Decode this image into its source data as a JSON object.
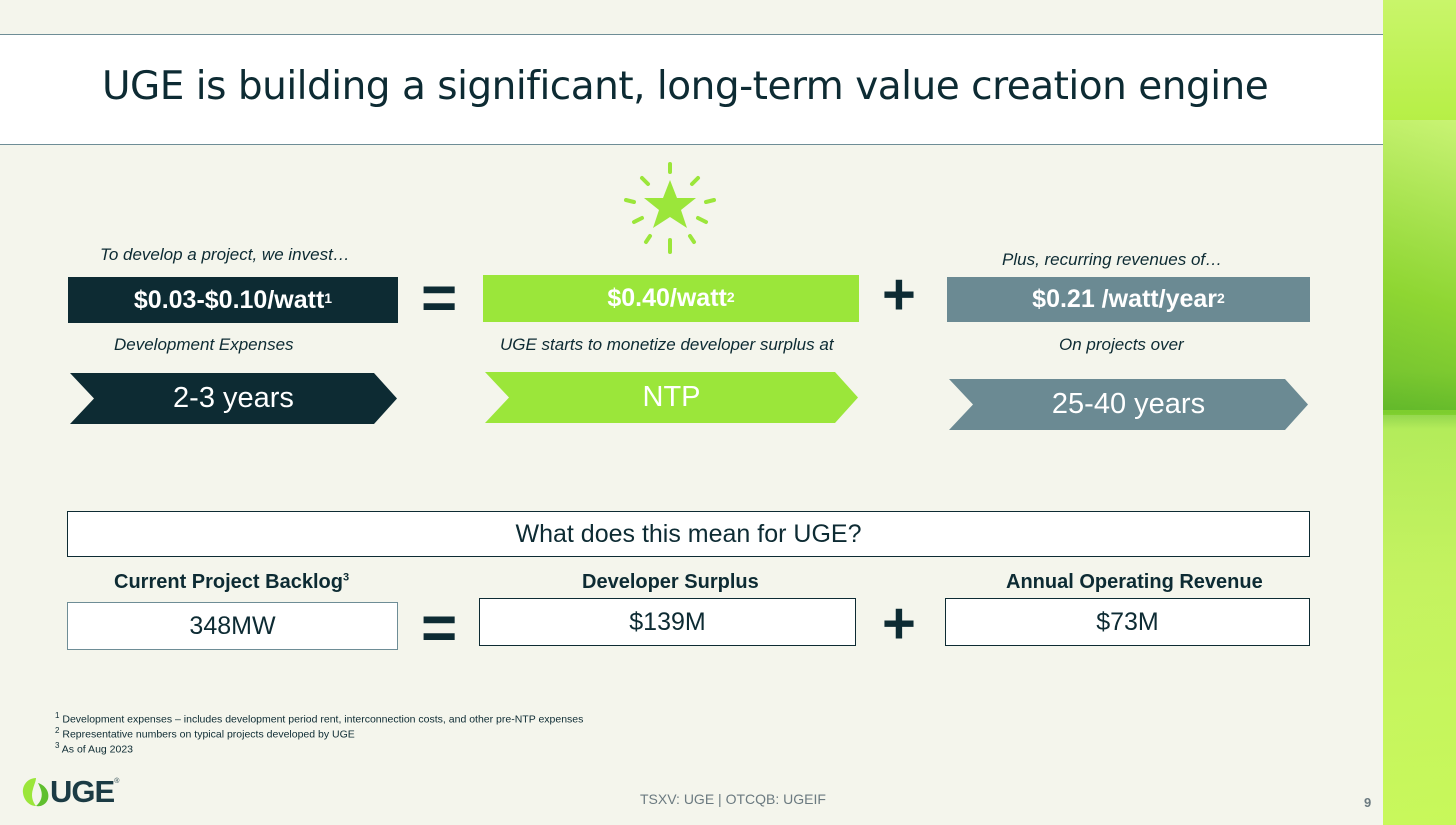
{
  "slide": {
    "title": "UGE is building a significant, long-term value creation engine"
  },
  "top_row": {
    "left": {
      "caption_above": "To develop a project, we invest…",
      "value": "$0.03-$0.10/watt",
      "value_sup": "1",
      "caption_below": "Development Expenses",
      "duration": "2-3 years"
    },
    "middle": {
      "value": "$0.40/watt",
      "value_sup": "2",
      "caption_below": "UGE starts to monetize developer surplus at",
      "milestone": "NTP"
    },
    "right": {
      "caption_above": "Plus, recurring revenues of…",
      "value": "$0.21 /watt/year",
      "value_sup": "2",
      "caption_below": "On projects over",
      "duration": "25-40 years"
    },
    "operators": {
      "equals": "=",
      "plus": "+"
    }
  },
  "meaning": {
    "heading": "What does this mean for UGE?",
    "backlog": {
      "label": "Current Project Backlog",
      "label_sup": "3",
      "value": "348MW"
    },
    "surplus": {
      "label": "Developer Surplus",
      "value": "$139M"
    },
    "revenue": {
      "label": "Annual Operating Revenue",
      "value": "$73M"
    },
    "operators": {
      "equals": "=",
      "plus": "+"
    }
  },
  "footnotes": [
    {
      "num": "1",
      "text": "Development expenses – includes development period rent, interconnection costs, and other pre-NTP expenses"
    },
    {
      "num": "2",
      "text": "Representative numbers on typical projects developed by UGE"
    },
    {
      "num": "3",
      "text": "As of Aug 2023"
    }
  ],
  "footer": {
    "ticker": "TSXV: UGE | OTCQB: UGEIF",
    "page_number": "9",
    "logo_text": "UGE",
    "logo_mark": "®"
  },
  "colors": {
    "navy": "#0d2b33",
    "lime": "#9be63a",
    "slate": "#6b8a93",
    "background": "#f4f5ec"
  },
  "icons": {
    "highlight": "star-burst-icon",
    "logo": "leaf-logo-icon"
  }
}
